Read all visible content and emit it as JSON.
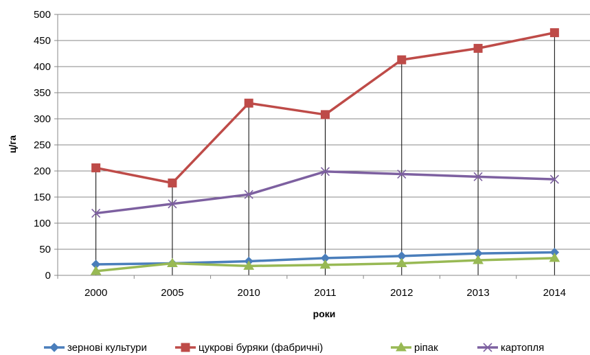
{
  "chart_data": {
    "type": "line",
    "title": "",
    "xlabel": "роки",
    "ylabel": "ц/га",
    "ylim": [
      0,
      500
    ],
    "yticks": [
      0,
      50,
      100,
      150,
      200,
      250,
      300,
      350,
      400,
      450,
      500
    ],
    "categories": [
      "2000",
      "2005",
      "2010",
      "2011",
      "2012",
      "2013",
      "2014"
    ],
    "grid": "horizontal",
    "drop_lines": true,
    "legend_position": "bottom",
    "series": [
      {
        "name": "зернові культури",
        "color": "#4a7ebb",
        "marker": "diamond",
        "values": [
          21,
          23,
          27,
          33,
          37,
          42,
          44
        ]
      },
      {
        "name": "цукрові буряки (фабричні)",
        "color": "#be4b48",
        "marker": "square",
        "values": [
          206,
          177,
          330,
          308,
          413,
          435,
          465
        ]
      },
      {
        "name": "ріпак",
        "color": "#98b954",
        "marker": "triangle",
        "values": [
          8,
          23,
          18,
          20,
          23,
          29,
          33
        ]
      },
      {
        "name": "картопля",
        "color": "#7d60a0",
        "marker": "x",
        "values": [
          119,
          137,
          155,
          199,
          194,
          189,
          184
        ]
      }
    ]
  }
}
